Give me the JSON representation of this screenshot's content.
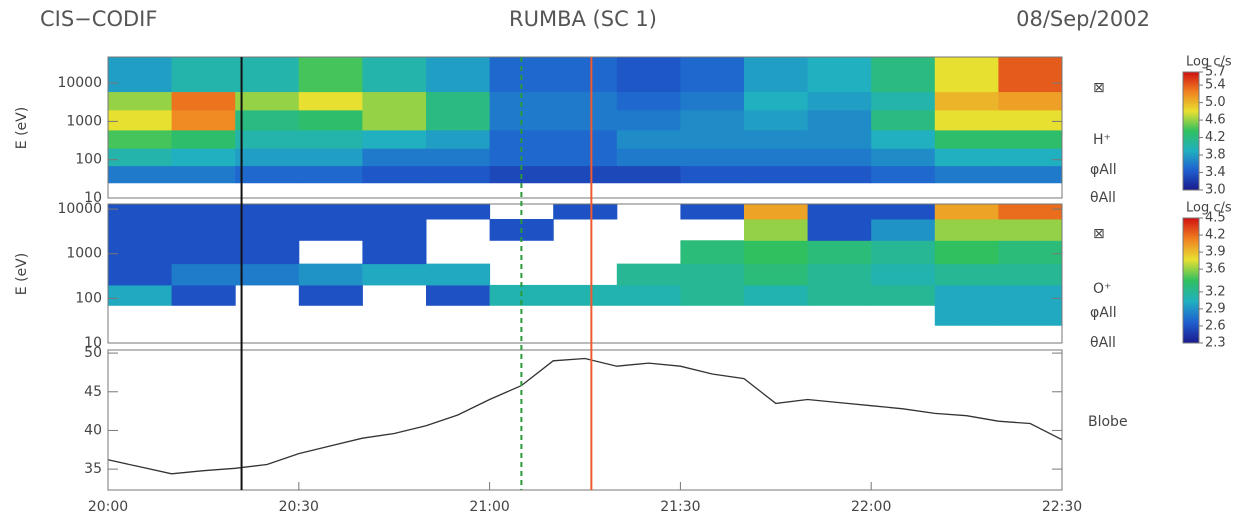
{
  "header": {
    "left": "CIS−CODIF",
    "center": "RUMBA (SC 1)",
    "right": "08/Sep/2002"
  },
  "markers": [
    {
      "x": "20:21",
      "color": "#111111"
    },
    {
      "x": "21:05",
      "color": "#2a9a3a",
      "dash": true
    },
    {
      "x": "21:16",
      "color": "#f05a30"
    }
  ],
  "chart_data": [
    {
      "type": "heatmap",
      "ylabel": "E (eV)",
      "ylog": true,
      "ylim": [
        10,
        48000
      ],
      "yticks": [
        10,
        100,
        1000,
        10000
      ],
      "xlim": [
        "20:00",
        "22:30"
      ],
      "xbins": [
        "20:00",
        "20:10",
        "20:20",
        "20:30",
        "20:40",
        "20:50",
        "21:00",
        "21:10",
        "21:20",
        "21:30",
        "21:40",
        "21:50",
        "22:00",
        "22:10",
        "22:20",
        "22:30"
      ],
      "ybins": [
        25,
        70,
        200,
        600,
        2000,
        6000,
        48000
      ],
      "values": [
        [
          3.6,
          4.0,
          4.4,
          4.8,
          4.6,
          3.8
        ],
        [
          3.6,
          3.9,
          4.3,
          5.2,
          5.3,
          4.0
        ],
        [
          3.5,
          3.8,
          4.0,
          4.2,
          4.6,
          4.0
        ],
        [
          3.5,
          3.8,
          4.0,
          4.3,
          4.8,
          4.4
        ],
        [
          3.4,
          3.6,
          3.9,
          4.6,
          4.6,
          4.0
        ],
        [
          3.4,
          3.6,
          3.8,
          4.2,
          4.2,
          3.8
        ],
        [
          3.3,
          3.5,
          3.5,
          3.6,
          3.6,
          3.5
        ],
        [
          3.3,
          3.5,
          3.5,
          3.6,
          3.6,
          3.5
        ],
        [
          3.3,
          3.6,
          3.7,
          3.6,
          3.5,
          3.4
        ],
        [
          3.4,
          3.6,
          3.7,
          3.7,
          3.6,
          3.5
        ],
        [
          3.4,
          3.6,
          3.7,
          3.8,
          3.9,
          3.8
        ],
        [
          3.4,
          3.6,
          3.7,
          3.7,
          3.8,
          3.9
        ],
        [
          3.5,
          3.7,
          3.9,
          4.2,
          4.0,
          4.2
        ],
        [
          3.6,
          3.9,
          4.3,
          4.8,
          5.0,
          4.8
        ],
        [
          3.6,
          3.9,
          4.3,
          4.8,
          5.1,
          5.4
        ]
      ],
      "colors": [
        "#1a1a8c",
        "#1f5fd0",
        "#20b0c0",
        "#30c060",
        "#e8e030",
        "#f08020",
        "#d01010"
      ],
      "colorbar": {
        "title": "Log c/s",
        "lim": [
          3.0,
          5.7
        ],
        "ticks": [
          {
            "value": 3,
            "label": "3.0"
          },
          3.4,
          3.8,
          4.2,
          4.6,
          {
            "value": 5,
            "label": "5.0"
          },
          5.4,
          5.7
        ]
      },
      "right_labels": [
        "⊠",
        "H⁺",
        "φAll",
        "θAll"
      ]
    },
    {
      "type": "heatmap",
      "ylabel": "E (eV)",
      "ylog": true,
      "ylim": [
        10,
        13000
      ],
      "yticks": [
        10,
        100,
        1000,
        10000
      ],
      "xlim": [
        "20:00",
        "22:30"
      ],
      "xbins": [
        "20:00",
        "20:10",
        "20:20",
        "20:30",
        "20:40",
        "20:50",
        "21:00",
        "21:10",
        "21:20",
        "21:30",
        "21:40",
        "21:50",
        "22:00",
        "22:10",
        "22:20",
        "22:30"
      ],
      "ybins": [
        25,
        70,
        200,
        600,
        2000,
        6000,
        13000
      ],
      "values": [
        [
          null,
          3.0,
          2.6,
          2.6,
          2.6,
          2.6
        ],
        [
          null,
          2.6,
          2.8,
          2.6,
          2.6,
          2.6
        ],
        [
          null,
          null,
          2.8,
          2.6,
          2.6,
          2.6
        ],
        [
          null,
          2.6,
          2.9,
          null,
          2.6,
          2.6
        ],
        [
          null,
          null,
          3.0,
          2.6,
          2.6,
          2.6
        ],
        [
          null,
          2.6,
          3.0,
          null,
          null,
          2.6
        ],
        [
          null,
          3.1,
          null,
          null,
          2.6,
          null
        ],
        [
          null,
          3.1,
          null,
          null,
          null,
          2.6
        ],
        [
          null,
          3.1,
          3.2,
          null,
          null,
          null
        ],
        [
          null,
          3.2,
          3.2,
          3.3,
          null,
          2.6
        ],
        [
          null,
          3.1,
          3.3,
          3.4,
          3.6,
          4.0
        ],
        [
          null,
          3.2,
          3.2,
          3.3,
          2.6,
          2.6
        ],
        [
          null,
          3.2,
          3.1,
          3.2,
          2.9,
          2.6
        ],
        [
          3.0,
          3.0,
          3.2,
          3.4,
          3.6,
          4.0
        ],
        [
          3.0,
          3.0,
          3.2,
          3.3,
          3.6,
          4.2
        ]
      ],
      "colors": [
        "#1a1a8c",
        "#1f5fd0",
        "#20b0c0",
        "#30c060",
        "#e8e030",
        "#f08020",
        "#d01010"
      ],
      "colorbar": {
        "title": "Log c/s",
        "lim": [
          2.3,
          4.5
        ],
        "ticks": [
          2.3,
          2.6,
          2.9,
          3.2,
          3.6,
          3.9,
          4.2,
          4.5
        ]
      },
      "right_labels": [
        "⊠",
        "O⁺",
        "φAll",
        "θAll"
      ]
    },
    {
      "type": "line",
      "color": "#333333",
      "ylim": [
        32.3,
        50.4
      ],
      "yticks": [
        35,
        40,
        45,
        50
      ],
      "xlim": [
        "20:00",
        "22:30"
      ],
      "xticks": [
        "20:00",
        "20:30",
        "21:00",
        "21:30",
        "22:00",
        "22:30"
      ],
      "x": [
        "20:00",
        "20:05",
        "20:10",
        "20:15",
        "20:20",
        "20:25",
        "20:30",
        "20:35",
        "20:40",
        "20:45",
        "20:50",
        "20:55",
        "21:00",
        "21:05",
        "21:10",
        "21:15",
        "21:20",
        "21:25",
        "21:30",
        "21:35",
        "21:40",
        "21:45",
        "21:50",
        "21:55",
        "22:00",
        "22:05",
        "22:10",
        "22:15",
        "22:20",
        "22:25",
        "22:30"
      ],
      "values": [
        36.2,
        35.3,
        34.4,
        34.8,
        35.1,
        35.6,
        37.0,
        38.0,
        39.0,
        39.6,
        40.6,
        42.0,
        44.0,
        45.8,
        49.0,
        49.3,
        48.3,
        48.7,
        48.3,
        47.3,
        46.7,
        43.5,
        44.0,
        43.6,
        43.2,
        42.8,
        42.2,
        41.9,
        41.2,
        40.9,
        38.8
      ],
      "right_label": "Blobe"
    }
  ]
}
